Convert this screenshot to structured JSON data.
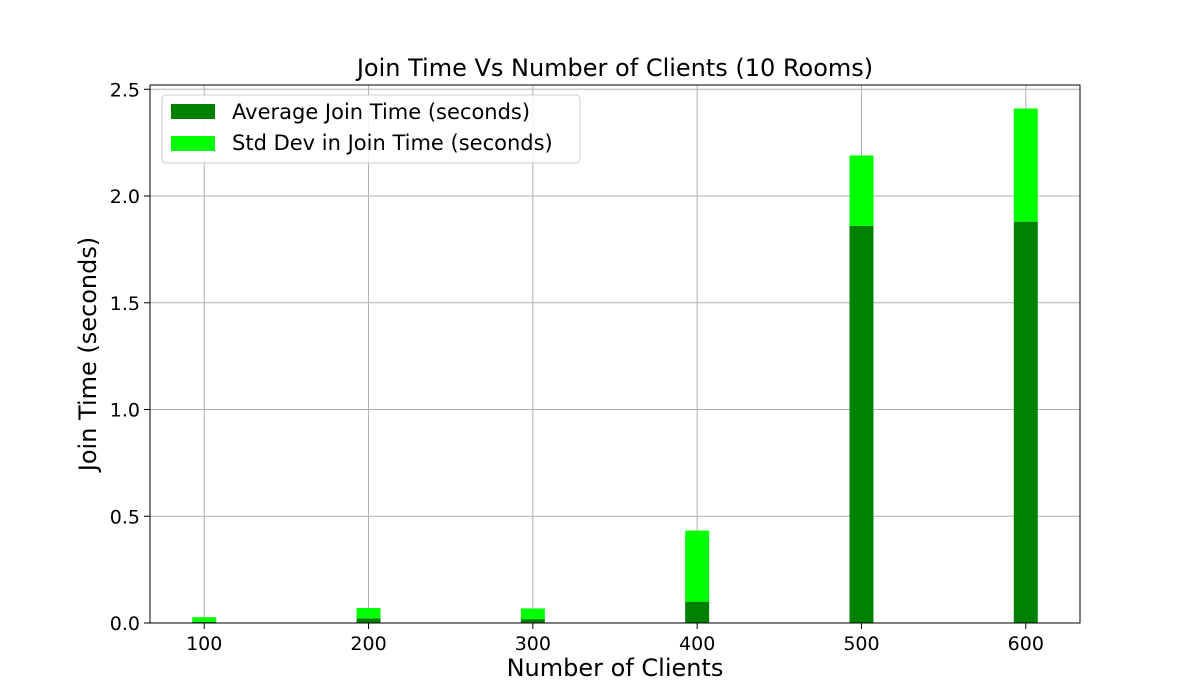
{
  "chart_data": {
    "type": "bar",
    "stacked": true,
    "title": "Join Time Vs Number of Clients (10 Rooms)",
    "xlabel": "Number of Clients",
    "ylabel": "Join Time (seconds)",
    "x": [
      100,
      200,
      300,
      400,
      500,
      600
    ],
    "xticks": [
      "100",
      "200",
      "300",
      "400",
      "500",
      "600"
    ],
    "xlim": [
      67,
      633
    ],
    "ylim": [
      0,
      2.52
    ],
    "yticks": [
      "0.0",
      "0.5",
      "1.0",
      "1.5",
      "2.0",
      "2.5"
    ],
    "grid": true,
    "legend_position": "top-left",
    "series": [
      {
        "name": "Average Join Time (seconds)",
        "color": "#008000",
        "values": [
          0.005,
          0.022,
          0.018,
          0.1,
          1.86,
          1.88
        ]
      },
      {
        "name": "Std Dev in Join Time (seconds)",
        "color": "#00ff00",
        "values": [
          0.022,
          0.048,
          0.05,
          0.333,
          0.33,
          0.53
        ]
      }
    ]
  }
}
